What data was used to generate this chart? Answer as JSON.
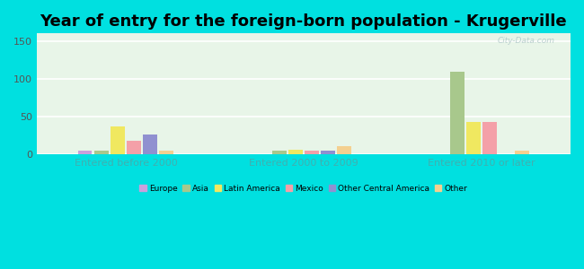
{
  "title": "Year of entry for the foreign-born population - Krugerville",
  "groups": [
    "Entered before 2000",
    "Entered 2000 to 2009",
    "Entered 2010 or later"
  ],
  "categories": [
    "Europe",
    "Asia",
    "Latin America",
    "Mexico",
    "Other Central America",
    "Other"
  ],
  "colors": [
    "#c9a0dc",
    "#a8c88c",
    "#f0e860",
    "#f4a0a8",
    "#9090d0",
    "#f4d090"
  ],
  "values": {
    "Entered before 2000": [
      4,
      4,
      37,
      18,
      26,
      5
    ],
    "Entered 2000 to 2009": [
      0,
      5,
      6,
      4,
      4,
      10
    ],
    "Entered 2010 or later": [
      0,
      109,
      43,
      42,
      0,
      5
    ]
  },
  "ylim": [
    0,
    160
  ],
  "yticks": [
    0,
    50,
    100,
    150
  ],
  "figure_bg": "#00e0e0",
  "plot_bg": "#e8f5e8",
  "title_fontsize": 13,
  "axis_label_color": "#40b0b0",
  "watermark": "City-Data.com"
}
